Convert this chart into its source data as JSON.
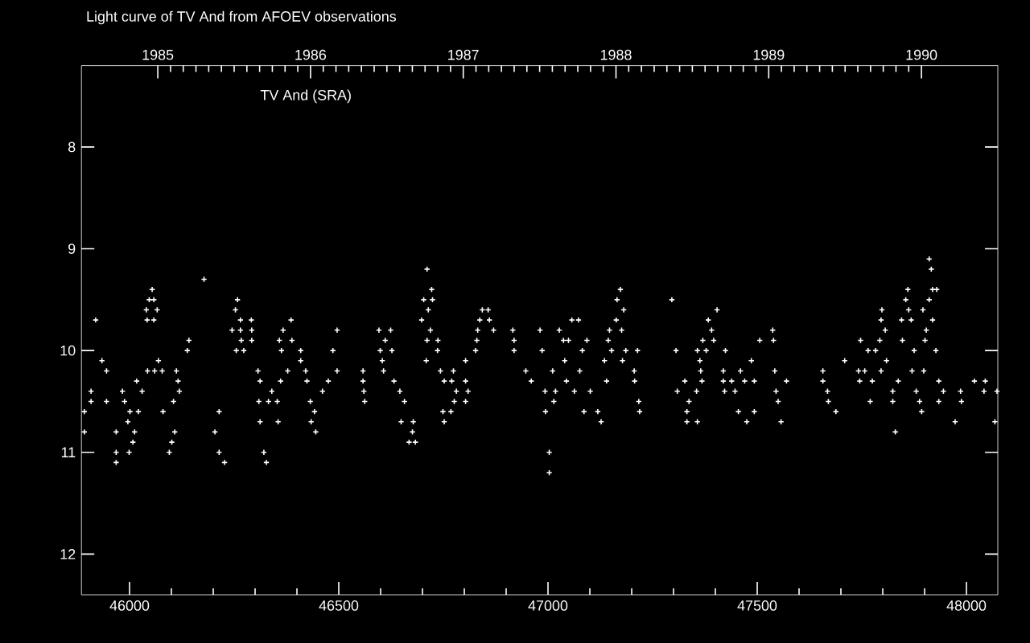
{
  "chart_data": {
    "type": "scatter",
    "title": "Light curve of TV And from AFOEV observations",
    "annotations": [
      "TV And (SRA)"
    ],
    "marker": "cross",
    "color": "#ffffff",
    "xlim": [
      45885,
      48075
    ],
    "ylim": [
      12.4,
      7.2
    ],
    "xticks": [
      46000,
      46500,
      47000,
      47500,
      48000
    ],
    "yticks": [
      8,
      9,
      10,
      11,
      12
    ],
    "x2lim": [
      1984.5,
      1990.5
    ],
    "x2ticks": [
      1985,
      1986,
      1987,
      1988,
      1989,
      1990
    ],
    "x": [
      45892,
      45892,
      45908,
      45908,
      45919,
      45934,
      45945,
      45945,
      45968,
      45968,
      45968,
      45983,
      45988,
      45996,
      45999,
      46001,
      46008,
      46012,
      46017,
      46021,
      46030,
      46040,
      46042,
      46043,
      46047,
      46054,
      46058,
      46058,
      46060,
      46066,
      46069,
      46078,
      46080,
      46095,
      46101,
      46105,
      46108,
      46112,
      46116,
      46119,
      46138,
      46142,
      46178,
      46204,
      46214,
      46214,
      46227,
      46245,
      46253,
      46255,
      46258,
      46265,
      46265,
      46267,
      46273,
      46291,
      46292,
      46292,
      46307,
      46309,
      46312,
      46312,
      46321,
      46327,
      46332,
      46340,
      46353,
      46355,
      46358,
      46361,
      46363,
      46367,
      46378,
      46386,
      46388,
      46409,
      46409,
      46421,
      46424,
      46432,
      46434,
      46442,
      46445,
      46461,
      46475,
      46486,
      46496,
      46496,
      46558,
      46558,
      46560,
      46562,
      46596,
      46599,
      46604,
      46607,
      46611,
      46624,
      46627,
      46632,
      46646,
      46649,
      46657,
      46668,
      46676,
      46678,
      46683,
      46698,
      46703,
      46709,
      46711,
      46711,
      46714,
      46719,
      46722,
      46724,
      46736,
      46737,
      46743,
      46749,
      46752,
      46752,
      46768,
      46770,
      46774,
      46776,
      46781,
      46803,
      46803,
      46803,
      46809,
      46827,
      46830,
      46832,
      46837,
      46843,
      46857,
      46860,
      46870,
      46916,
      46919,
      46919,
      46947,
      46960,
      46981,
      46986,
      46993,
      46994,
      47003,
      47003,
      47011,
      47014,
      47018,
      47027,
      47037,
      47040,
      47044,
      47049,
      47057,
      47063,
      47073,
      47076,
      47082,
      47086,
      47093,
      47101,
      47119,
      47127,
      47135,
      47140,
      47144,
      47147,
      47152,
      47163,
      47165,
      47173,
      47176,
      47178,
      47181,
      47186,
      47206,
      47207,
      47214,
      47217,
      47219,
      47296,
      47306,
      47309,
      47327,
      47332,
      47332,
      47337,
      47355,
      47357,
      47357,
      47363,
      47365,
      47368,
      47370,
      47378,
      47383,
      47391,
      47396,
      47404,
      47419,
      47419,
      47422,
      47424,
      47439,
      47447,
      47455,
      47460,
      47470,
      47475,
      47486,
      47493,
      47493,
      47506,
      47537,
      47539,
      47542,
      47545,
      47550,
      47557,
      47570,
      47657,
      47657,
      47668,
      47670,
      47688,
      47709,
      47742,
      47745,
      47747,
      47757,
      47765,
      47770,
      47775,
      47783,
      47793,
      47796,
      47796,
      47798,
      47806,
      47809,
      47824,
      47824,
      47830,
      47837,
      47845,
      47847,
      47855,
      47860,
      47862,
      47868,
      47870,
      47875,
      47880,
      47888,
      47893,
      47896,
      47898,
      47901,
      47904,
      47911,
      47911,
      47916,
      47919,
      47919,
      47927,
      47929,
      47934,
      47934,
      47945,
      47973,
      47986,
      47988,
      48019,
      48042,
      48045,
      48068,
      48073
    ],
    "values": [
      10.6,
      10.8,
      10.4,
      10.5,
      9.7,
      10.1,
      10.2,
      10.5,
      10.8,
      11.0,
      11.1,
      10.4,
      10.5,
      10.7,
      11.0,
      10.6,
      10.9,
      10.8,
      10.3,
      10.6,
      10.4,
      9.6,
      9.7,
      10.2,
      9.5,
      9.4,
      9.5,
      9.7,
      10.2,
      9.6,
      10.1,
      10.2,
      10.6,
      11.0,
      10.9,
      10.5,
      10.8,
      10.2,
      10.3,
      10.4,
      10.0,
      9.9,
      9.3,
      10.8,
      10.6,
      11.0,
      11.1,
      9.8,
      9.6,
      10.0,
      9.5,
      9.7,
      9.8,
      9.9,
      10.0,
      9.7,
      9.8,
      9.9,
      10.2,
      10.5,
      10.3,
      10.7,
      11.0,
      11.1,
      10.5,
      10.4,
      10.5,
      10.7,
      9.9,
      10.3,
      10.0,
      9.8,
      10.2,
      9.7,
      9.9,
      10.1,
      10.0,
      10.2,
      10.3,
      10.5,
      10.7,
      10.6,
      10.8,
      10.4,
      10.3,
      10.0,
      9.8,
      10.2,
      10.2,
      10.3,
      10.4,
      10.5,
      9.8,
      10.0,
      10.1,
      10.2,
      9.9,
      9.8,
      10.0,
      10.3,
      10.4,
      10.7,
      10.5,
      10.9,
      10.8,
      10.7,
      10.9,
      9.7,
      9.5,
      10.1,
      9.9,
      9.2,
      9.6,
      9.8,
      9.4,
      9.5,
      10.0,
      9.9,
      10.2,
      10.6,
      10.3,
      10.7,
      10.6,
      10.3,
      10.2,
      10.5,
      10.4,
      10.1,
      10.3,
      10.5,
      10.4,
      10.0,
      9.9,
      9.8,
      9.7,
      9.6,
      9.6,
      9.7,
      9.8,
      9.8,
      9.9,
      10.0,
      10.2,
      10.3,
      9.8,
      10.0,
      10.4,
      10.6,
      11.0,
      11.2,
      10.2,
      10.5,
      10.4,
      9.8,
      9.9,
      10.1,
      10.3,
      9.9,
      9.7,
      10.4,
      9.7,
      10.2,
      10.0,
      10.6,
      9.9,
      10.4,
      10.6,
      10.7,
      10.1,
      10.3,
      9.9,
      9.8,
      10.0,
      9.7,
      9.5,
      9.4,
      9.8,
      10.1,
      9.6,
      10.0,
      10.2,
      10.3,
      10.0,
      10.5,
      10.6,
      9.5,
      10.0,
      10.4,
      10.3,
      10.6,
      10.7,
      10.5,
      10.4,
      10.0,
      10.7,
      10.1,
      10.2,
      10.3,
      9.9,
      10.0,
      9.7,
      9.8,
      9.9,
      9.6,
      10.2,
      10.3,
      10.4,
      10.0,
      10.3,
      10.4,
      10.6,
      10.2,
      10.3,
      10.7,
      10.1,
      10.3,
      10.6,
      9.9,
      9.8,
      9.9,
      10.2,
      10.4,
      10.5,
      10.7,
      10.3,
      10.2,
      10.3,
      10.4,
      10.5,
      10.6,
      10.1,
      10.2,
      10.3,
      9.9,
      10.2,
      10.0,
      10.5,
      10.3,
      10.0,
      9.9,
      9.7,
      10.2,
      9.6,
      9.8,
      10.1,
      10.5,
      10.4,
      10.8,
      10.3,
      9.7,
      9.9,
      9.5,
      9.4,
      9.6,
      9.7,
      10.2,
      10.0,
      10.4,
      10.5,
      10.6,
      9.6,
      10.2,
      9.9,
      9.8,
      9.5,
      9.1,
      9.2,
      9.4,
      9.7,
      10.0,
      9.4,
      10.3,
      10.5,
      10.4,
      10.7,
      10.4,
      10.5,
      10.3,
      10.4,
      10.3,
      10.7,
      10.4
    ]
  }
}
